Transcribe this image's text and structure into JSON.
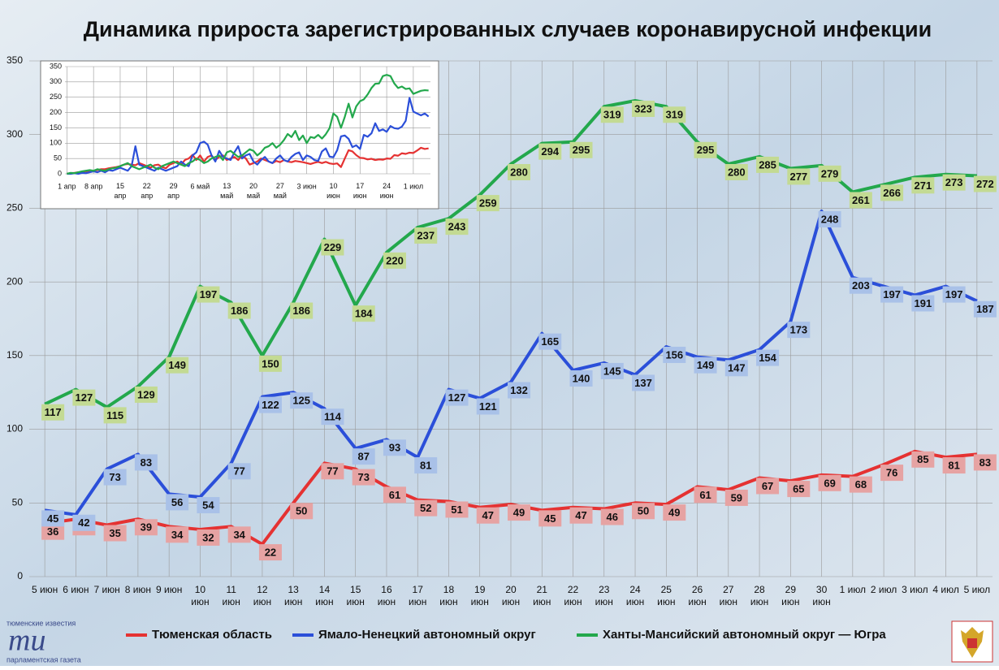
{
  "chart_data": [
    {
      "type": "line",
      "title": "Динамика прироста зарегистрированных случаев коронавирусной инфекции",
      "categories": [
        "5 июн",
        "6 июн",
        "7 июн",
        "8 июн",
        "9 июн",
        "10 июн",
        "11 июн",
        "12 июн",
        "13 июн",
        "14 июн",
        "15 июн",
        "16 июн",
        "17 июн",
        "18 июн",
        "19 июн",
        "20 июн",
        "21 июн",
        "22 июн",
        "23 июн",
        "24 июн",
        "25 июн",
        "26 июн",
        "27 июн",
        "28 июн",
        "29 июн",
        "30 июн",
        "1 июл",
        "2 июл",
        "3 июл",
        "4 июл",
        "5 июл"
      ],
      "ylim": [
        0,
        350
      ],
      "yticks": [
        0,
        50,
        100,
        150,
        200,
        250,
        300,
        350
      ],
      "grid": true,
      "legend": "bottom",
      "series": [
        {
          "name": "Тюменская область",
          "color": "#e53232",
          "label_color": "#e6a3a3",
          "values": [
            36,
            39,
            35,
            39,
            34,
            32,
            34,
            22,
            50,
            77,
            73,
            61,
            52,
            51,
            47,
            49,
            45,
            47,
            46,
            50,
            49,
            61,
            59,
            67,
            65,
            69,
            68,
            76,
            85,
            81,
            83
          ]
        },
        {
          "name": "Ямало-Ненецкий автономный округ",
          "color": "#2b4fd9",
          "label_color": "#a9c1e8",
          "values": [
            45,
            42,
            73,
            83,
            56,
            54,
            77,
            122,
            125,
            114,
            87,
            93,
            81,
            127,
            121,
            132,
            165,
            140,
            145,
            137,
            156,
            149,
            147,
            154,
            173,
            248,
            203,
            197,
            191,
            197,
            187
          ]
        },
        {
          "name": "Ханты-Мансийский автономный округ — Югра",
          "color": "#23a84c",
          "label_color": "#c3da93",
          "values": [
            117,
            127,
            115,
            129,
            149,
            197,
            186,
            150,
            186,
            229,
            184,
            220,
            237,
            243,
            259,
            280,
            294,
            295,
            319,
            323,
            319,
            295,
            280,
            285,
            277,
            279,
            261,
            266,
            271,
            273,
            272
          ]
        }
      ]
    },
    {
      "type": "line",
      "categories": [
        "1 апр",
        null,
        null,
        null,
        null,
        null,
        null,
        "8 апр",
        null,
        null,
        null,
        null,
        null,
        null,
        "15 апр",
        null,
        null,
        null,
        null,
        null,
        null,
        "22 апр",
        null,
        null,
        null,
        null,
        null,
        null,
        "29 апр",
        null,
        null,
        null,
        null,
        null,
        null,
        "6 май",
        null,
        null,
        null,
        null,
        null,
        null,
        "13 май",
        null,
        null,
        null,
        null,
        null,
        null,
        "20 май",
        null,
        null,
        null,
        null,
        null,
        null,
        "27 май",
        null,
        null,
        null,
        null,
        null,
        null,
        "3 июн",
        null,
        null,
        null,
        null,
        null,
        null,
        "10 июн",
        null,
        null,
        null,
        null,
        null,
        null,
        "17 июн",
        null,
        null,
        null,
        null,
        null,
        null,
        "24 июн",
        null,
        null,
        null,
        null,
        null,
        null,
        "1 июл",
        null,
        null,
        null,
        null
      ],
      "ylim": [
        0,
        350
      ],
      "yticks": [
        0,
        50,
        100,
        150,
        200,
        250,
        300,
        350
      ],
      "grid": true,
      "series": [
        {
          "color": "#e53232",
          "values": [
            0,
            2,
            3,
            5,
            5,
            8,
            10,
            10,
            12,
            15,
            15,
            18,
            20,
            22,
            25,
            30,
            32,
            30,
            28,
            35,
            30,
            25,
            20,
            28,
            30,
            22,
            18,
            30,
            35,
            40,
            30,
            45,
            50,
            62,
            45,
            60,
            40,
            55,
            60,
            45,
            55,
            60,
            45,
            50,
            55,
            45,
            60,
            50,
            30,
            35,
            40,
            50,
            45,
            40,
            35,
            42,
            38,
            45,
            40,
            38,
            42,
            40,
            38,
            35,
            32,
            36,
            39,
            35,
            39,
            34,
            32,
            34,
            22,
            50,
            77,
            73,
            61,
            52,
            51,
            47,
            49,
            45,
            47,
            46,
            50,
            49,
            61,
            59,
            67,
            65,
            69,
            68,
            76,
            85,
            81,
            83
          ]
        },
        {
          "color": "#2b4fd9",
          "values": [
            0,
            0,
            2,
            0,
            3,
            2,
            5,
            8,
            5,
            10,
            5,
            12,
            10,
            15,
            20,
            15,
            10,
            25,
            90,
            30,
            25,
            20,
            15,
            10,
            20,
            15,
            10,
            15,
            20,
            25,
            40,
            30,
            25,
            60,
            70,
            100,
            105,
            95,
            60,
            40,
            75,
            55,
            50,
            45,
            70,
            90,
            50,
            60,
            65,
            40,
            30,
            45,
            55,
            40,
            35,
            50,
            60,
            45,
            40,
            55,
            65,
            70,
            45,
            60,
            55,
            45,
            42,
            73,
            83,
            56,
            54,
            77,
            122,
            125,
            114,
            87,
            93,
            81,
            127,
            121,
            132,
            165,
            140,
            145,
            137,
            156,
            149,
            147,
            154,
            173,
            248,
            203,
            197,
            191,
            197,
            187
          ]
        },
        {
          "color": "#23a84c",
          "values": [
            0,
            3,
            2,
            5,
            8,
            10,
            12,
            10,
            15,
            12,
            10,
            15,
            18,
            20,
            25,
            30,
            35,
            25,
            20,
            15,
            20,
            25,
            30,
            20,
            15,
            25,
            30,
            35,
            40,
            35,
            30,
            25,
            35,
            40,
            50,
            45,
            35,
            40,
            50,
            55,
            60,
            45,
            70,
            75,
            65,
            55,
            60,
            70,
            80,
            75,
            60,
            70,
            85,
            90,
            100,
            85,
            95,
            110,
            130,
            120,
            140,
            110,
            125,
            100,
            120,
            117,
            127,
            115,
            129,
            149,
            197,
            186,
            150,
            186,
            229,
            184,
            220,
            237,
            243,
            259,
            280,
            294,
            295,
            319,
            323,
            319,
            295,
            280,
            285,
            277,
            279,
            261,
            266,
            271,
            273,
            272
          ]
        }
      ]
    }
  ],
  "logo": {
    "top": "тюменские известия",
    "mark": "ти",
    "bottom": "парламентская газета"
  }
}
